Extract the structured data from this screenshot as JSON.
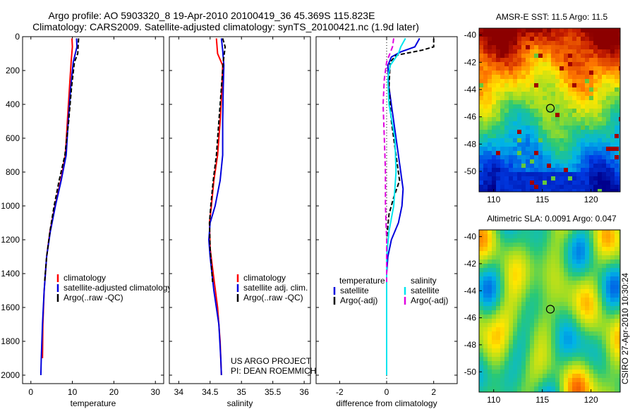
{
  "header": {
    "line1": "Argo profile: AO 5903320_8 19-Apr-2010 20100419_36 45.369S 115.823E",
    "line2": "Climatology: CARS2009. Satellite-adjusted climatology: synTS_20100421.nc (1.9d later)"
  },
  "colors": {
    "climatology": "#ff0000",
    "satellite": "#0000dd",
    "argo": "#000000",
    "satellite_salinity": "#00e5ee",
    "argo_salinity": "#e000e0"
  },
  "credits": {
    "project": "US ARGO PROJECT",
    "pi": "PI: DEAN ROEMMICH",
    "stamp": "CSIRO 27-Apr-2010 10:30:24"
  },
  "chart_data": [
    {
      "id": "temperature",
      "type": "line",
      "xlabel": "temperature",
      "ylabel": "",
      "xlim": [
        -2,
        32
      ],
      "ylim": [
        2050,
        0
      ],
      "xticks": [
        0,
        10,
        20,
        30
      ],
      "yticks": [
        0,
        200,
        400,
        600,
        800,
        1000,
        1200,
        1400,
        1600,
        1800,
        2000
      ],
      "legend": [
        "climatology",
        "satellite-adjusted climatology",
        "Argo(..raw -QC)"
      ],
      "series": [
        {
          "name": "climatology",
          "color": "#ff0000",
          "dash": "",
          "points": [
            [
              9.9,
              10
            ],
            [
              10.0,
              60
            ],
            [
              9.7,
              150
            ],
            [
              9.3,
              300
            ],
            [
              8.8,
              500
            ],
            [
              8.3,
              700
            ],
            [
              7.2,
              850
            ],
            [
              5.8,
              1000
            ],
            [
              4.6,
              1150
            ],
            [
              3.8,
              1300
            ],
            [
              3.2,
              1500
            ],
            [
              2.9,
              1700
            ],
            [
              2.8,
              1900
            ]
          ]
        },
        {
          "name": "satellite-adjusted climatology",
          "color": "#0000dd",
          "dash": "",
          "points": [
            [
              11.0,
              10
            ],
            [
              11.1,
              60
            ],
            [
              10.2,
              150
            ],
            [
              9.6,
              300
            ],
            [
              9.0,
              500
            ],
            [
              8.5,
              700
            ],
            [
              7.3,
              850
            ],
            [
              5.9,
              1000
            ],
            [
              4.7,
              1150
            ],
            [
              3.8,
              1300
            ],
            [
              3.2,
              1500
            ],
            [
              2.8,
              1700
            ],
            [
              2.5,
              1900
            ],
            [
              2.4,
              2000
            ]
          ]
        },
        {
          "name": "Argo(..raw -QC)",
          "color": "#000000",
          "dash": "6,3",
          "points": [
            [
              11.5,
              10
            ],
            [
              11.4,
              50
            ],
            [
              11.3,
              100
            ],
            [
              10.5,
              150
            ],
            [
              9.8,
              300
            ],
            [
              9.1,
              500
            ],
            [
              8.2,
              700
            ],
            [
              6.8,
              850
            ],
            [
              5.6,
              1000
            ],
            [
              4.6,
              1150
            ],
            [
              3.8,
              1300
            ],
            [
              3.3,
              1450
            ]
          ]
        }
      ]
    },
    {
      "id": "salinity",
      "type": "line",
      "xlabel": "salinity",
      "ylabel": "",
      "xlim": [
        33.85,
        36.1
      ],
      "ylim": [
        2050,
        0
      ],
      "xticks": [
        34,
        34.5,
        35,
        35.5,
        36
      ],
      "xtick_labels": [
        "34",
        "34.5",
        "35",
        "35.5",
        "36"
      ],
      "yticks": [
        0,
        200,
        400,
        600,
        800,
        1000,
        1200,
        1400,
        1600,
        1800,
        2000
      ],
      "legend": [
        "climatology",
        "satellite adj. clim.",
        "Argo(..raw -QC)"
      ],
      "series": [
        {
          "name": "climatology",
          "color": "#ff0000",
          "dash": "",
          "points": [
            [
              34.6,
              10
            ],
            [
              34.62,
              100
            ],
            [
              34.7,
              170
            ],
            [
              34.69,
              300
            ],
            [
              34.66,
              500
            ],
            [
              34.62,
              700
            ],
            [
              34.56,
              850
            ],
            [
              34.52,
              1000
            ],
            [
              34.49,
              1100
            ],
            [
              34.5,
              1250
            ],
            [
              34.55,
              1400
            ],
            [
              34.62,
              1600
            ],
            [
              34.66,
              1800
            ],
            [
              34.68,
              2000
            ]
          ]
        },
        {
          "name": "satellite adj. clim.",
          "color": "#0000dd",
          "dash": "",
          "points": [
            [
              34.68,
              10
            ],
            [
              34.7,
              80
            ],
            [
              34.72,
              170
            ],
            [
              34.71,
              300
            ],
            [
              34.7,
              500
            ],
            [
              34.7,
              700
            ],
            [
              34.66,
              850
            ],
            [
              34.58,
              1000
            ],
            [
              34.5,
              1100
            ],
            [
              34.48,
              1200
            ],
            [
              34.5,
              1300
            ],
            [
              34.56,
              1500
            ],
            [
              34.64,
              1700
            ],
            [
              34.67,
              1900
            ],
            [
              34.68,
              2000
            ]
          ]
        },
        {
          "name": "Argo(..raw -QC)",
          "color": "#000000",
          "dash": "6,3",
          "points": [
            [
              34.7,
              10
            ],
            [
              34.74,
              60
            ],
            [
              34.71,
              150
            ],
            [
              34.68,
              300
            ],
            [
              34.64,
              500
            ],
            [
              34.6,
              700
            ],
            [
              34.55,
              850
            ],
            [
              34.51,
              1000
            ],
            [
              34.49,
              1100
            ],
            [
              34.5,
              1250
            ],
            [
              34.54,
              1450
            ]
          ]
        }
      ]
    },
    {
      "id": "difference",
      "type": "line",
      "xlabel": "difference from climatology",
      "ylabel": "",
      "xlim": [
        -3,
        3
      ],
      "ylim": [
        2050,
        0
      ],
      "xticks": [
        -2,
        0,
        2
      ],
      "yticks": [
        0,
        200,
        400,
        600,
        800,
        1000,
        1200,
        1400,
        1600,
        1800,
        2000
      ],
      "legend_headers": [
        "temperature",
        "salinity"
      ],
      "legend": [
        "satellite",
        "Argo(-adj)",
        "satellite",
        "Argo(-adj)"
      ],
      "series": [
        {
          "name": "temperature satellite",
          "color": "#0000dd",
          "dash": "",
          "points": [
            [
              1.4,
              10
            ],
            [
              1.2,
              60
            ],
            [
              0.6,
              90
            ],
            [
              0.2,
              120
            ],
            [
              0.05,
              170
            ],
            [
              0.1,
              300
            ],
            [
              0.3,
              500
            ],
            [
              0.45,
              650
            ],
            [
              0.6,
              800
            ],
            [
              0.7,
              900
            ],
            [
              0.65,
              1000
            ],
            [
              0.5,
              1100
            ],
            [
              0.2,
              1200
            ],
            [
              0.05,
              1300
            ],
            [
              0.0,
              1400
            ]
          ]
        },
        {
          "name": "temperature Argo(-adj)",
          "color": "#000000",
          "dash": "6,3",
          "points": [
            [
              2.0,
              10
            ],
            [
              2.0,
              60
            ],
            [
              1.5,
              80
            ],
            [
              0.4,
              110
            ],
            [
              0.15,
              150
            ],
            [
              0.1,
              300
            ],
            [
              0.2,
              500
            ],
            [
              0.4,
              700
            ],
            [
              0.55,
              850
            ],
            [
              0.3,
              950
            ],
            [
              0.1,
              1050
            ],
            [
              0.0,
              1200
            ]
          ]
        },
        {
          "name": "salinity satellite",
          "color": "#00e5ee",
          "dash": "",
          "points": [
            [
              0.8,
              10
            ],
            [
              0.6,
              60
            ],
            [
              0.5,
              100
            ],
            [
              0.15,
              170
            ],
            [
              0.05,
              250
            ],
            [
              0.1,
              400
            ],
            [
              0.35,
              600
            ],
            [
              0.4,
              800
            ],
            [
              0.3,
              1000
            ],
            [
              0.1,
              1150
            ],
            [
              0.0,
              1300
            ],
            [
              0.0,
              2000
            ]
          ]
        },
        {
          "name": "salinity Argo(-adj)",
          "color": "#e000e0",
          "dash": "7,4",
          "points": [
            [
              0.3,
              10
            ],
            [
              0.25,
              60
            ],
            [
              0.0,
              150
            ],
            [
              -0.1,
              250
            ],
            [
              -0.15,
              400
            ],
            [
              -0.1,
              600
            ],
            [
              -0.05,
              800
            ],
            [
              -0.05,
              1000
            ],
            [
              0.0,
              1200
            ],
            [
              0.0,
              1450
            ]
          ]
        }
      ]
    },
    {
      "id": "sst_map",
      "type": "heatmap",
      "title": "AMSR-E SST: 11.5 Argo: 11.5",
      "xlim": [
        108.5,
        123
      ],
      "ylim": [
        -51.5,
        -39.5
      ],
      "xticks": [
        110,
        115,
        120
      ],
      "yticks": [
        -40,
        -42,
        -44,
        -46,
        -48,
        -50
      ],
      "marker": [
        115.823,
        -45.369
      ]
    },
    {
      "id": "sla_map",
      "type": "heatmap",
      "title": "Altimetric SLA: 0.0091 Argo: 0.047",
      "xlim": [
        108.5,
        123
      ],
      "ylim": [
        -51.5,
        -39.5
      ],
      "xticks": [
        110,
        115,
        120
      ],
      "yticks": [
        -40,
        -42,
        -44,
        -46,
        -48,
        -50
      ],
      "marker": [
        115.823,
        -45.369
      ]
    }
  ]
}
